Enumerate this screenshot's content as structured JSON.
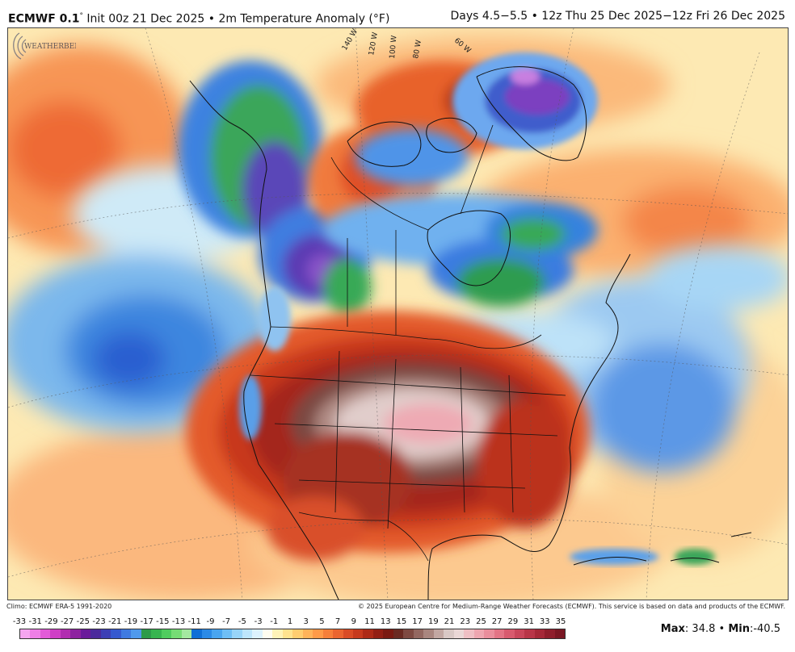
{
  "header": {
    "model": "ECMWF 0.1",
    "degree": "°",
    "init": " Init 00z 21 Dec 2025 • 2m Temperature Anomaly (°F)",
    "valid": "Days 4.5−5.5 • 12z Thu 25 Dec 2025−12z Fri 26 Dec 2025"
  },
  "map": {
    "meridian_labels": [
      "140 W",
      "120 W",
      "100 W",
      "80 W",
      "60 W"
    ],
    "logo_text": "WEATHERBELL"
  },
  "credits": {
    "climo": "Climo: ECMWF ERA-5 1991-2020",
    "copyright": "© 2025 European Centre for Medium-Range Weather Forecasts (ECMWF). This service is based on data and products of the ECMWF."
  },
  "scale": {
    "ticks": [
      "-33",
      "-31",
      "-29",
      "-27",
      "-25",
      "-23",
      "-21",
      "-19",
      "-17",
      "-15",
      "-13",
      "-11",
      "-9",
      "-7",
      "-5",
      "-3",
      "-1",
      "1",
      "3",
      "5",
      "7",
      "9",
      "11",
      "13",
      "15",
      "17",
      "19",
      "21",
      "23",
      "25",
      "27",
      "29",
      "31",
      "33",
      "35"
    ],
    "colors": [
      "#f5a6f0",
      "#ee7fe6",
      "#e35bd8",
      "#cf3fc6",
      "#b12cb0",
      "#8e22a0",
      "#6a1b9a",
      "#4b2a9c",
      "#3d3fb5",
      "#3659cf",
      "#3f7ae0",
      "#4f99ec",
      "#2d9b4a",
      "#36b44f",
      "#4fcc5e",
      "#76dc75",
      "#a4e8a0",
      "#0f6fd6",
      "#2b8ae6",
      "#4aa5ef",
      "#6fbef5",
      "#98d4f8",
      "#bde5fb",
      "#ddf2fd",
      "#fffdf0",
      "#fff3b8",
      "#ffe38f",
      "#ffcd70",
      "#ffb35a",
      "#ff9a48",
      "#f67f3a",
      "#ea6530",
      "#d94c26",
      "#c63a1e",
      "#ad2a17",
      "#921f14",
      "#7a1a12",
      "#6a2a22",
      "#7e4a42",
      "#936861",
      "#a9867f",
      "#c2a7a2",
      "#d9c8c5",
      "#ead7d6",
      "#efbfc4",
      "#eea6b0",
      "#ea8e9c",
      "#e37485",
      "#d85a6e",
      "#c9465b",
      "#b83548",
      "#a52838",
      "#8f1e2c",
      "#7a1723"
    ],
    "max_label": "Max",
    "max_value": ": 34.8",
    "sep": " • ",
    "min_label": "Min",
    "min_value": ":-40.5"
  }
}
